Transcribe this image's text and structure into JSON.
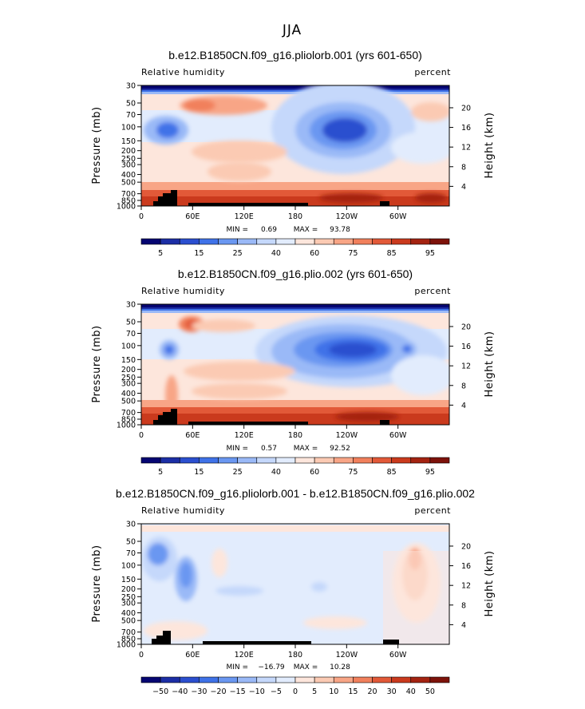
{
  "page_title": "JJA",
  "chart_data": [
    {
      "type": "heatmap",
      "title": "b.e12.B1850CN.f09_g16.pliolorb.001 (yrs 601-650)",
      "left_label": "Relative humidity",
      "right_label": "percent",
      "xlabel": "",
      "ylabel": "Pressure (mb)",
      "ylabel_right": "Height (km)",
      "x_ticks": [
        "0",
        "60E",
        "120E",
        "180",
        "120W",
        "60W"
      ],
      "y_ticks": [
        "30",
        "50",
        "70",
        "100",
        "150",
        "200",
        "250",
        "300",
        "400",
        "500",
        "700",
        "850",
        "1000"
      ],
      "y_right_ticks": [
        "20",
        "16",
        "12",
        "8",
        "4"
      ],
      "min_label": "MIN =",
      "min_value": "0.69",
      "max_label": "MAX =",
      "max_value": "93.78",
      "colorbar_labels": [
        "5",
        "15",
        "25",
        "40",
        "60",
        "75",
        "85",
        "95"
      ],
      "colors": [
        "#060672",
        "#1c2ea5",
        "#2b4fcf",
        "#3f72e8",
        "#6a97f1",
        "#9ab9f7",
        "#c5d8fb",
        "#e2ecfd",
        "#fde6dc",
        "#fbcab3",
        "#f8a586",
        "#f1805c",
        "#e25938",
        "#ca3a1d",
        "#a42311",
        "#7d120a"
      ],
      "features": [
        {
          "lon": 150,
          "p": 420,
          "rx": 30,
          "ry": 0.16,
          "v": -3
        },
        {
          "lon": 150,
          "p": 420,
          "rx": 22,
          "ry": 0.1,
          "v": -2
        },
        {
          "lon": 20,
          "p": 400,
          "rx": 18,
          "ry": 0.1,
          "v": -1
        },
        {
          "lon": 80,
          "p": 175,
          "rx": 28,
          "ry": 0.06,
          "v": 2
        },
        {
          "lon": 60,
          "p": 600,
          "rx": 35,
          "ry": 0.12,
          "v": 1
        }
      ]
    },
    {
      "type": "heatmap",
      "title": "b.e12.B1850CN.f09_g16.plio.002 (yrs 601-650)",
      "left_label": "Relative humidity",
      "right_label": "percent",
      "xlabel": "",
      "ylabel": "Pressure (mb)",
      "ylabel_right": "Height (km)",
      "x_ticks": [
        "0",
        "60E",
        "120E",
        "180",
        "120W",
        "60W"
      ],
      "y_ticks": [
        "30",
        "50",
        "70",
        "100",
        "150",
        "200",
        "250",
        "300",
        "400",
        "500",
        "700",
        "850",
        "1000"
      ],
      "y_right_ticks": [
        "20",
        "16",
        "12",
        "8",
        "4"
      ],
      "min_label": "MIN =",
      "min_value": "0.57",
      "max_label": "MAX =",
      "max_value": "92.52",
      "colorbar_labels": [
        "5",
        "15",
        "25",
        "40",
        "60",
        "75",
        "85",
        "95"
      ],
      "colors": [
        "#060672",
        "#1c2ea5",
        "#2b4fcf",
        "#3f72e8",
        "#6a97f1",
        "#9ab9f7",
        "#c5d8fb",
        "#e2ecfd",
        "#fde6dc",
        "#fbcab3",
        "#f8a586",
        "#f1805c",
        "#e25938",
        "#ca3a1d",
        "#a42311",
        "#7d120a"
      ],
      "features": [
        {
          "lon": 230,
          "p": 400,
          "rx": 45,
          "ry": 0.16,
          "v": -3
        },
        {
          "lon": 245,
          "p": 400,
          "rx": 28,
          "ry": 0.1,
          "v": -2
        },
        {
          "lon": 35,
          "p": 390,
          "rx": 8,
          "ry": 0.08,
          "v": -1
        },
        {
          "lon": 60,
          "p": 200,
          "rx": 12,
          "ry": 0.05,
          "v": 2
        },
        {
          "lon": 280,
          "p": 400,
          "rx": 10,
          "ry": 0.07,
          "v": -1
        }
      ]
    },
    {
      "type": "heatmap",
      "title": "b.e12.B1850CN.f09_g16.pliolorb.001 - b.e12.B1850CN.f09_g16.plio.002",
      "left_label": "Relative humidity",
      "right_label": "percent",
      "xlabel": "",
      "ylabel": "Pressure (mb)",
      "ylabel_right": "Height (km)",
      "x_ticks": [
        "0",
        "60E",
        "120E",
        "180",
        "120W",
        "60W"
      ],
      "y_ticks": [
        "30",
        "50",
        "70",
        "100",
        "150",
        "200",
        "250",
        "300",
        "400",
        "500",
        "700",
        "850",
        "1000"
      ],
      "y_right_ticks": [
        "20",
        "16",
        "12",
        "8",
        "4"
      ],
      "min_label": "MIN =",
      "min_value": "−16.79",
      "max_label": "MAX =",
      "max_value": "10.28",
      "colorbar_labels": [
        "−50",
        "−40",
        "−30",
        "−20",
        "−15",
        "−10",
        "−5",
        "0",
        "5",
        "10",
        "15",
        "20",
        "30",
        "40",
        "50"
      ],
      "colors": [
        "#060672",
        "#1c2ea5",
        "#2b4fcf",
        "#3f72e8",
        "#6a97f1",
        "#9ab9f7",
        "#c5d8fb",
        "#e2ecfd",
        "#fde6dc",
        "#fbcab3",
        "#f8a586",
        "#f1805c",
        "#e25938",
        "#ca3a1d",
        "#a42311",
        "#7d120a"
      ]
    }
  ]
}
